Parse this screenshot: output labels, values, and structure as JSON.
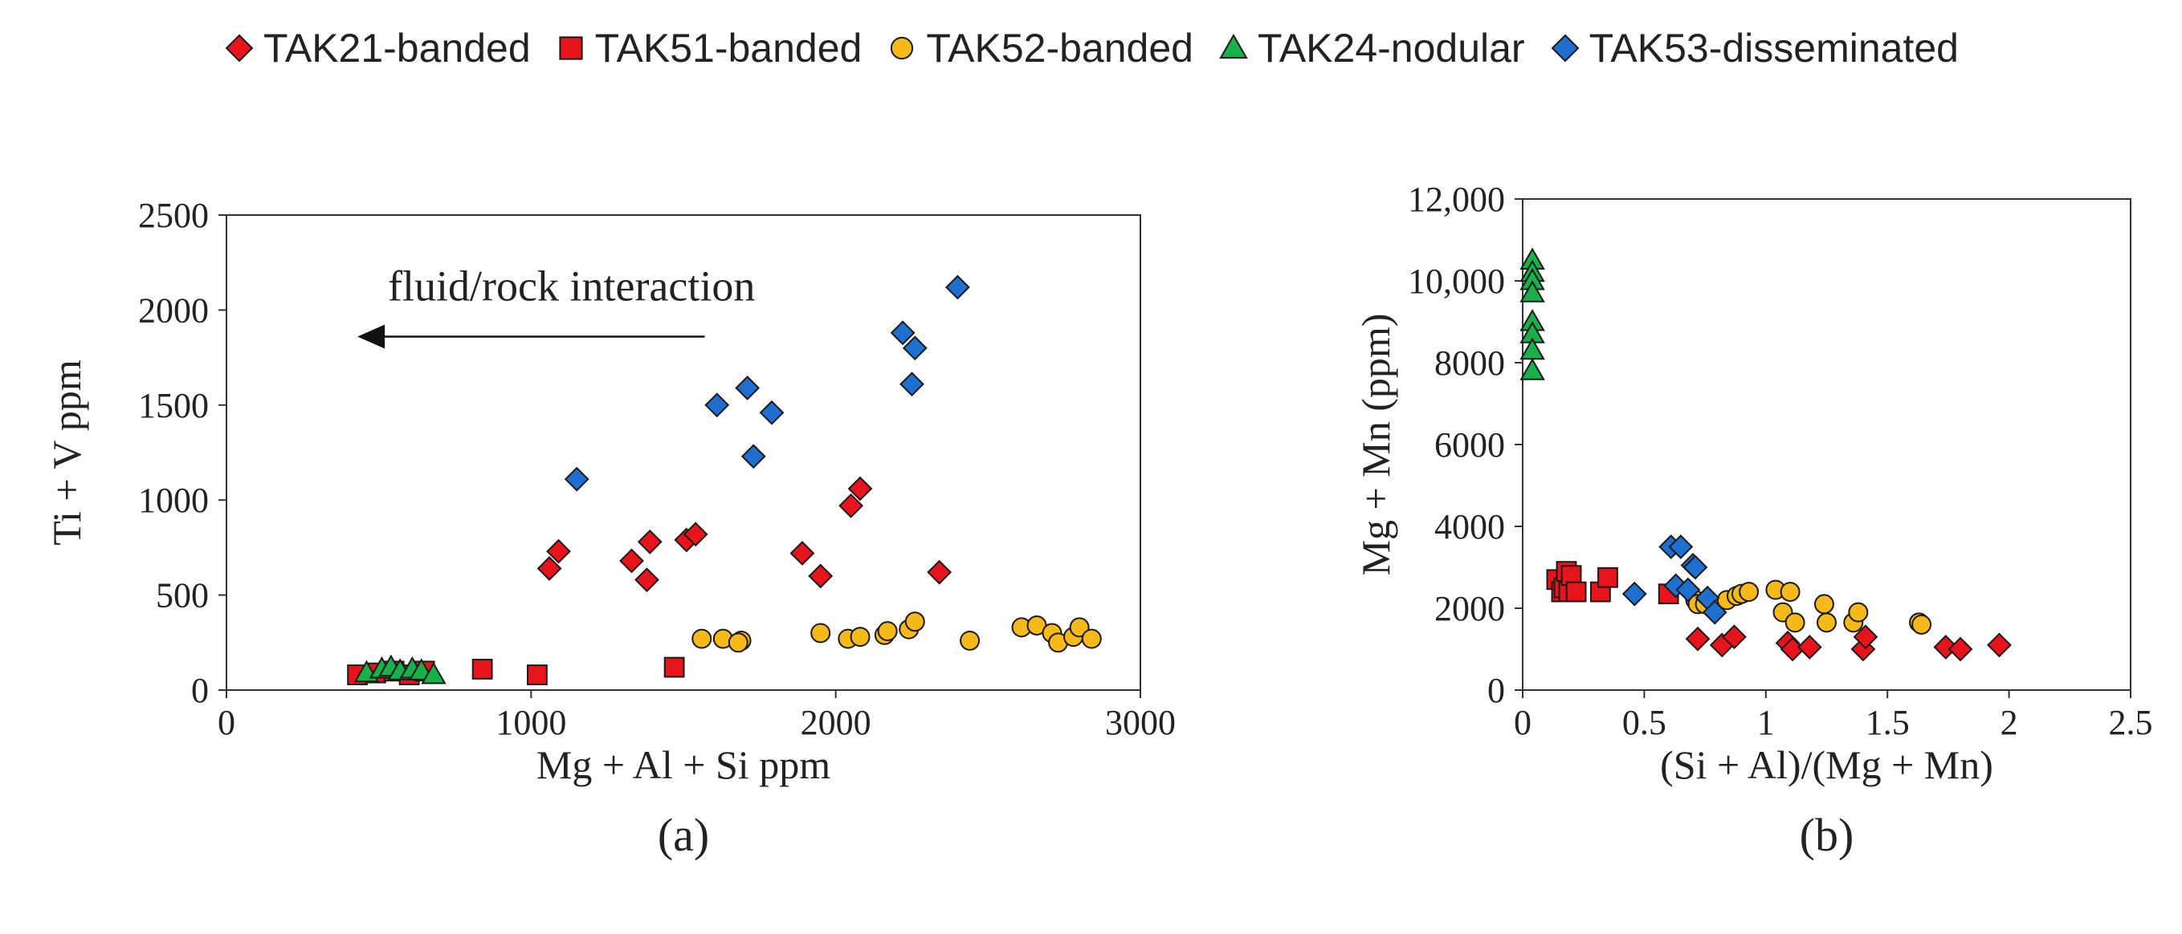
{
  "series_styles": [
    {
      "name": "TAK21-banded",
      "marker": "diamond",
      "color": "#e8141c"
    },
    {
      "name": "TAK51-banded",
      "marker": "square",
      "color": "#e8141c"
    },
    {
      "name": "TAK52-banded",
      "marker": "circle",
      "color": "#f5b91a"
    },
    {
      "name": "TAK24-nodular",
      "marker": "triangle",
      "color": "#18b04a"
    },
    {
      "name": "TAK53-disseminated",
      "marker": "diamond",
      "color": "#1f6fd1"
    }
  ],
  "chart_data": [
    {
      "type": "scatter",
      "id": "a",
      "panel_label": "(a)",
      "xlabel": "Mg + Al + Si ppm",
      "ylabel": "Ti + V ppm",
      "xlim": [
        0,
        3000
      ],
      "ylim": [
        0,
        2500
      ],
      "xticks": [
        0,
        1000,
        2000,
        3000
      ],
      "xtick_labels": [
        "0",
        "1000",
        "2000",
        "3000"
      ],
      "yticks": [
        0,
        500,
        1000,
        1500,
        2000,
        2500
      ],
      "ytick_labels": [
        "0",
        "500",
        "1000",
        "1500",
        "2000",
        "2500"
      ],
      "annotation": {
        "text": "fluid/rock interaction",
        "arrow_from": [
          1570,
          1860
        ],
        "arrow_to": [
          430,
          1860
        ],
        "text_at": [
          530,
          2050
        ]
      },
      "series": [
        {
          "name": "TAK21-banded",
          "x": [
            1060,
            1090,
            1330,
            1380,
            1390,
            1510,
            1540,
            1890,
            1950,
            2050,
            2080,
            2340
          ],
          "y": [
            640,
            730,
            680,
            580,
            780,
            790,
            820,
            720,
            600,
            970,
            1060,
            620
          ]
        },
        {
          "name": "TAK51-banded",
          "x": [
            430,
            490,
            550,
            600,
            650,
            840,
            1020,
            1470
          ],
          "y": [
            80,
            90,
            100,
            80,
            100,
            110,
            80,
            120
          ]
        },
        {
          "name": "TAK52-banded",
          "x": [
            1560,
            1630,
            1690,
            1680,
            1950,
            2040,
            2080,
            2160,
            2170,
            2240,
            2260,
            2440,
            2610,
            2660,
            2710,
            2730,
            2780,
            2800,
            2840
          ],
          "y": [
            270,
            270,
            260,
            250,
            300,
            270,
            280,
            290,
            310,
            320,
            360,
            260,
            330,
            340,
            300,
            250,
            280,
            330,
            270
          ]
        },
        {
          "name": "TAK24-nodular",
          "x": [
            460,
            510,
            540,
            570,
            610,
            640,
            680
          ],
          "y": [
            90,
            110,
            120,
            100,
            110,
            100,
            80
          ]
        },
        {
          "name": "TAK53-disseminated",
          "x": [
            1150,
            1610,
            1710,
            1730,
            1790,
            2220,
            2250,
            2260,
            2400
          ],
          "y": [
            1110,
            1500,
            1590,
            1230,
            1460,
            1880,
            1610,
            1800,
            2120
          ]
        }
      ]
    },
    {
      "type": "scatter",
      "id": "b",
      "panel_label": "(b)",
      "xlabel": "(Si + Al)/(Mg + Mn)",
      "ylabel": "Mg + Mn (ppm)",
      "xlim": [
        0,
        2.5
      ],
      "ylim": [
        0,
        12000
      ],
      "xticks": [
        0,
        0.5,
        1,
        1.5,
        2,
        2.5
      ],
      "xtick_labels": [
        "0",
        "0.5",
        "1",
        "1.5",
        "2",
        "2.5"
      ],
      "yticks": [
        0,
        2000,
        4000,
        6000,
        8000,
        10000,
        12000
      ],
      "ytick_labels": [
        "0",
        "2000",
        "4000",
        "6000",
        "8000",
        "10,000",
        "12,000"
      ],
      "series": [
        {
          "name": "TAK21-banded",
          "x": [
            0.72,
            0.82,
            0.87,
            1.09,
            1.11,
            1.18,
            1.4,
            1.41,
            1.74,
            1.8,
            1.96
          ],
          "y": [
            1250,
            1100,
            1300,
            1150,
            1000,
            1050,
            1000,
            1300,
            1050,
            1000,
            1100
          ]
        },
        {
          "name": "TAK51-banded",
          "x": [
            0.14,
            0.16,
            0.17,
            0.18,
            0.19,
            0.2,
            0.22,
            0.32,
            0.35,
            0.6
          ],
          "y": [
            2700,
            2400,
            2500,
            2900,
            2400,
            2800,
            2400,
            2400,
            2750,
            2350
          ]
        },
        {
          "name": "TAK52-banded",
          "x": [
            0.71,
            0.72,
            0.75,
            0.84,
            0.88,
            0.9,
            0.93,
            1.04,
            1.07,
            1.1,
            1.12,
            1.24,
            1.25,
            1.36,
            1.38,
            1.63,
            1.64
          ],
          "y": [
            2200,
            2100,
            2100,
            2200,
            2300,
            2350,
            2400,
            2450,
            1900,
            2400,
            1650,
            2100,
            1650,
            1650,
            1900,
            1650,
            1600
          ]
        },
        {
          "name": "TAK24-nodular",
          "x": [
            0.04,
            0.04,
            0.04,
            0.04,
            0.04,
            0.04,
            0.04,
            0.04
          ],
          "y": [
            10500,
            10200,
            10000,
            9700,
            9000,
            8700,
            8300,
            7800
          ]
        },
        {
          "name": "TAK53-disseminated",
          "x": [
            0.46,
            0.61,
            0.63,
            0.65,
            0.68,
            0.7,
            0.71,
            0.76,
            0.79
          ],
          "y": [
            2350,
            3500,
            2550,
            3500,
            2450,
            3050,
            3000,
            2250,
            1900
          ]
        }
      ]
    }
  ]
}
